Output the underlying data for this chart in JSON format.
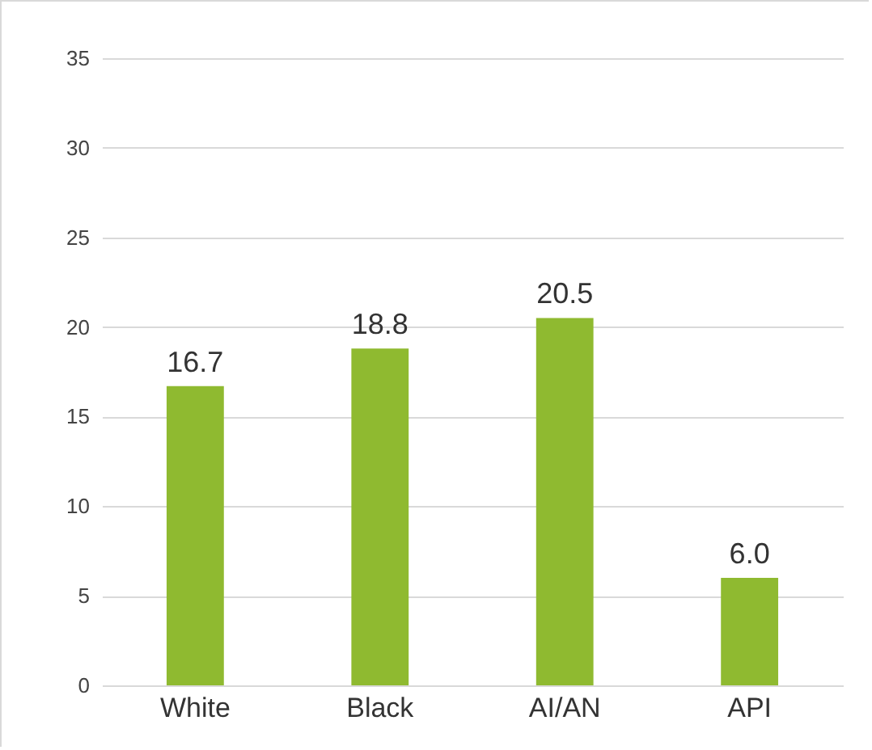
{
  "chart_data": {
    "type": "bar",
    "categories": [
      "White",
      "Black",
      "AI/AN",
      "API"
    ],
    "values": [
      16.7,
      18.8,
      20.5,
      6.0
    ],
    "value_labels": [
      "16.7",
      "18.8",
      "20.5",
      "6.0"
    ],
    "color": "#8fba30",
    "ylim": [
      0,
      35
    ],
    "yticks": [
      0,
      5,
      10,
      15,
      20,
      25,
      30,
      35
    ],
    "grid": "y"
  }
}
